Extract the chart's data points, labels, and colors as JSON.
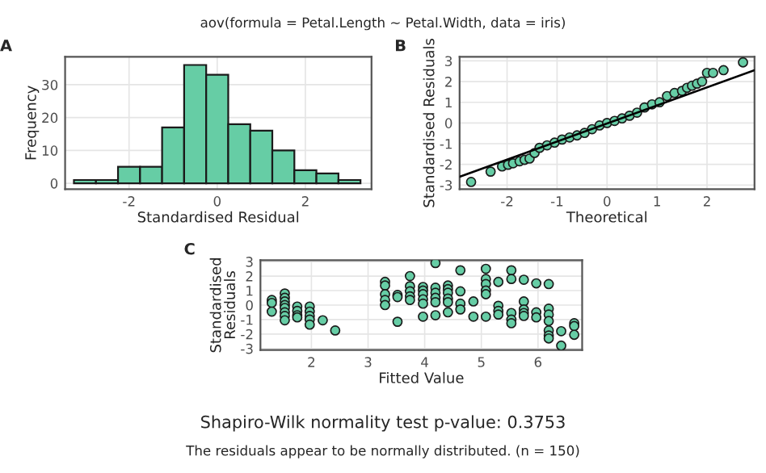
{
  "chart_data": [
    {
      "type": "histogram",
      "title": "aov(formula = Petal.Length ~ Petal.Width, data = iris)",
      "xlabel": "Standardised Residual",
      "ylabel": "Frequency",
      "annotations": [
        "A"
      ],
      "bins": [
        -3.25,
        -2.75,
        -2.25,
        -1.75,
        -1.25,
        -0.75,
        -0.25,
        0.25,
        0.75,
        1.25,
        1.75,
        2.25,
        2.75,
        3.25
      ],
      "values": [
        1,
        1,
        5,
        5,
        17,
        36,
        33,
        18,
        16,
        10,
        4,
        3,
        1
      ],
      "color": "#66cda5",
      "xlim": [
        -3.45,
        3.5
      ],
      "xticks": [
        -2,
        0,
        2
      ],
      "ylim": [
        -1.8,
        38.5
      ],
      "yticks": [
        0,
        10,
        20,
        30
      ],
      "grid": true
    },
    {
      "type": "scatter",
      "xlabel": "Theoretical",
      "ylabel": "Standardised Residuals",
      "annotations": [
        "B"
      ],
      "series": [
        {
          "type": "scatter",
          "color": "#66cda5",
          "x": [
            -2.72,
            -2.33,
            -2.1,
            -1.98,
            -1.88,
            -1.75,
            -1.65,
            -1.55,
            -1.45,
            -1.35,
            -1.2,
            -1.05,
            -0.9,
            -0.75,
            -0.6,
            -0.45,
            -0.3,
            -0.15,
            0,
            0.15,
            0.3,
            0.45,
            0.6,
            0.75,
            0.9,
            1.05,
            1.2,
            1.35,
            1.5,
            1.6,
            1.7,
            1.8,
            1.9,
            2.0,
            2.12,
            2.33,
            2.72
          ],
          "values": [
            -2.85,
            -2.35,
            -2.1,
            -2.02,
            -1.95,
            -1.85,
            -1.78,
            -1.72,
            -1.45,
            -1.2,
            -1.08,
            -0.95,
            -0.8,
            -0.7,
            -0.6,
            -0.48,
            -0.3,
            -0.12,
            0,
            0.1,
            0.22,
            0.35,
            0.5,
            0.75,
            0.9,
            1.0,
            1.3,
            1.45,
            1.55,
            1.7,
            1.8,
            1.9,
            2.0,
            2.42,
            2.42,
            2.55,
            2.93
          ]
        },
        {
          "type": "line",
          "marker": "none",
          "color": "#000000",
          "x": [
            -2.95,
            2.95
          ],
          "values": [
            -2.6,
            2.55
          ]
        }
      ],
      "xlim": [
        -2.95,
        2.95
      ],
      "xticks": [
        -2,
        -1,
        0,
        1,
        2
      ],
      "ylim": [
        -3.2,
        3.2
      ],
      "yticks": [
        -3,
        -2,
        -1,
        0,
        1,
        2,
        3
      ],
      "grid": true,
      "marker": "circle"
    },
    {
      "type": "scatter",
      "xlabel": "Fitted Value",
      "ylabel": "Standardised Residuals",
      "annotations": [
        "C",
        "Shapiro-Wilk normality test p-value: 0.3753",
        "The residuals appear to be normally distributed. (n = 150)"
      ],
      "series": [
        {
          "color": "#66cda5",
          "x": [
            1.3,
            1.3,
            1.3,
            1.53,
            1.53,
            1.53,
            1.53,
            1.53,
            1.53,
            1.53,
            1.53,
            1.75,
            1.75,
            1.75,
            1.75,
            1.97,
            1.97,
            1.97,
            1.97,
            1.97,
            2.2,
            2.42,
            3.3,
            3.3,
            3.3,
            3.3,
            3.3,
            3.52,
            3.52,
            3.52,
            3.74,
            3.74,
            3.74,
            3.74,
            3.74,
            3.97,
            3.97,
            3.97,
            3.97,
            3.97,
            3.97,
            4.19,
            4.19,
            4.19,
            4.19,
            4.19,
            4.19,
            4.41,
            4.41,
            4.41,
            4.41,
            4.41,
            4.41,
            4.63,
            4.63,
            4.63,
            4.63,
            4.86,
            4.86,
            5.08,
            5.08,
            5.08,
            5.08,
            5.08,
            5.08,
            5.3,
            5.3,
            5.3,
            5.3,
            5.53,
            5.53,
            5.53,
            5.53,
            5.53,
            5.75,
            5.75,
            5.75,
            5.75,
            5.75,
            5.97,
            5.97,
            5.97,
            6.19,
            6.19,
            6.19,
            6.19,
            6.19,
            6.19,
            6.19,
            6.41,
            6.41,
            6.64,
            6.64,
            6.64
          ],
          "values": [
            0.35,
            0.15,
            -0.45,
            0.8,
            0.5,
            0.25,
            0,
            -0.2,
            -0.5,
            -0.75,
            -1.05,
            -0.1,
            -0.4,
            -0.7,
            -0.85,
            -0.1,
            -0.45,
            -0.75,
            -1.0,
            -1.35,
            -1.05,
            -1.75,
            1.6,
            1.35,
            0.75,
            0.35,
            0,
            0.7,
            0.55,
            -1.15,
            2.0,
            1.3,
            0.95,
            0.6,
            0.35,
            1.25,
            1.0,
            0.75,
            0.4,
            0.1,
            -0.8,
            2.9,
            1.2,
            0.85,
            0.5,
            0.2,
            -0.7,
            1.35,
            1.1,
            0.85,
            0.45,
            0.2,
            -0.5,
            2.4,
            0.95,
            0.1,
            -0.3,
            0.25,
            -0.8,
            2.5,
            1.8,
            1.45,
            1.0,
            0.75,
            -0.8,
            1.6,
            -0.05,
            -0.4,
            -0.65,
            2.4,
            1.8,
            -0.55,
            -1.0,
            -1.25,
            1.75,
            0.25,
            -0.3,
            -0.55,
            -0.75,
            1.5,
            -0.5,
            -0.85,
            1.45,
            -0.25,
            -0.65,
            -1.1,
            -1.75,
            -2.1,
            -2.3,
            -1.8,
            -2.8,
            -1.25,
            -1.45,
            -2.05
          ]
        }
      ],
      "xlim": [
        1.1,
        6.78
      ],
      "xticks": [
        2,
        3,
        4,
        5,
        6
      ],
      "ylim": [
        -3.1,
        3.1
      ],
      "yticks": [
        -3,
        -2,
        -1,
        0,
        1,
        2,
        3
      ],
      "grid": true,
      "marker": "circle"
    }
  ]
}
